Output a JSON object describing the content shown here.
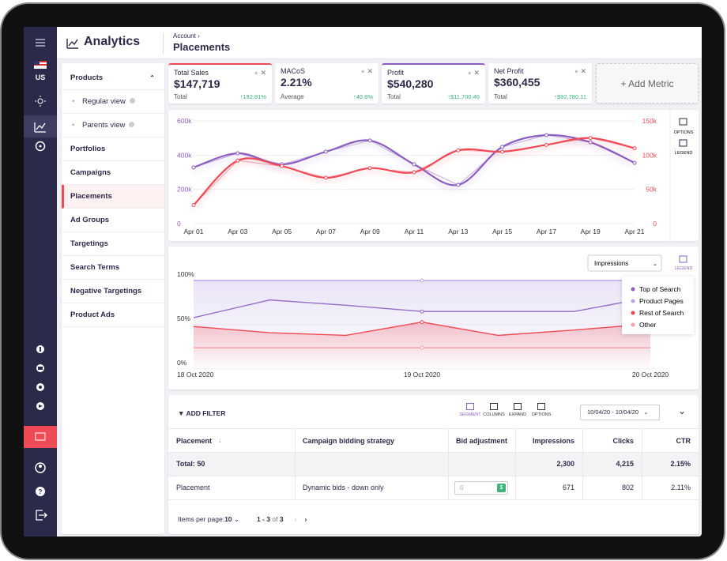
{
  "header": {
    "title": "Analytics",
    "breadcrumb": "Account",
    "page": "Placements"
  },
  "sidebar": {
    "country": "US"
  },
  "nav": {
    "group": "Products",
    "sub": [
      "Regular view",
      "Parents view"
    ],
    "items": [
      "Portfolios",
      "Campaigns",
      "Placements",
      "Ad Groups",
      "Targetings",
      "Search Terms",
      "Negative Targetings",
      "Product Ads"
    ]
  },
  "metrics": [
    {
      "title": "Total Sales",
      "value": "$147,719",
      "basis": "Total",
      "change": "↑192.81%"
    },
    {
      "title": "MACoS",
      "value": "2.21%",
      "basis": "Average",
      "change": "↑40.8%"
    },
    {
      "title": "Profit",
      "value": "$540,280",
      "basis": "Total",
      "change": "↑$11,700.46"
    },
    {
      "title": "Net Profit",
      "value": "$360,455",
      "basis": "Total",
      "change": "↑$92,780.11"
    }
  ],
  "add_metric": "Add Metric",
  "chart_data": [
    {
      "type": "line",
      "categories": [
        "Apr 01",
        "Apr 03",
        "Apr 05",
        "Apr 07",
        "Apr 09",
        "Apr 11",
        "Apr 13",
        "Apr 15",
        "Apr 17",
        "Apr 19",
        "Apr 21"
      ],
      "series": [
        {
          "color": "#8b5fbf",
          "values": [
            328000,
            411000,
            346000,
            420000,
            485000,
            346000,
            226000,
            448000,
            517000,
            475000,
            355000
          ]
        },
        {
          "color": "#ef4b57",
          "axis": "y2",
          "values": [
            27000,
            92000,
            84000,
            67000,
            81000,
            75000,
            107000,
            105000,
            115000,
            125000,
            110000
          ]
        }
      ],
      "ylim": [
        0,
        600000
      ],
      "yticks": [
        0,
        {
          "value": 200000,
          "label": "200k"
        },
        {
          "value": 400000,
          "label": "400k"
        },
        {
          "value": 600000,
          "label": "600k"
        }
      ],
      "y2lim": [
        0,
        150000
      ],
      "y2ticks": [
        0,
        {
          "value": 50000,
          "label": "50k"
        },
        {
          "value": 100000,
          "label": "100k"
        },
        {
          "value": 150000,
          "label": "150k"
        }
      ],
      "tools": [
        "OPTIONS",
        "LEGEND"
      ]
    },
    {
      "type": "line",
      "categories": [
        "18 Oct 2020",
        null,
        null,
        "19 Oct 2020",
        null,
        null,
        "20 Oct 2020"
      ],
      "series": [
        {
          "name": "Top of Search",
          "color": "#8b5fbf",
          "values": [
            58,
            78,
            72,
            65,
            65,
            65,
            81
          ]
        },
        {
          "name": "Product Pages",
          "color": "#b9a3e3",
          "values": [
            100,
            100,
            100,
            100,
            100,
            100,
            100
          ]
        },
        {
          "name": "Rest of Search",
          "color": "#ef4b57",
          "values": [
            48,
            41,
            38,
            53,
            38,
            44,
            51
          ]
        },
        {
          "name": "Other",
          "color": "#f7a1a8",
          "values": [
            24,
            24,
            24,
            24,
            24,
            24,
            24
          ]
        }
      ],
      "ylim": [
        0,
        100
      ],
      "yticks": [
        {
          "value": 0,
          "label": "0%"
        },
        {
          "value": 50,
          "label": "50%"
        },
        {
          "value": 100,
          "label": "100%"
        }
      ],
      "metric": "Impressions",
      "tool": "LEGEND",
      "legend": "right"
    }
  ],
  "table": {
    "filter": "ADD FILTER",
    "tools": [
      "SEGMENT",
      "COLUMNS",
      "EXPAND",
      "OPTIONS"
    ],
    "dates": "10/04/20 - 10/04/20",
    "columns": [
      "Placement",
      "Campaign bidding strategy",
      "Bid adjustment",
      "Impressions",
      "Clicks",
      "CTR"
    ],
    "total": {
      "label": "Total: 50",
      "impressions": "2,300",
      "clicks": "4,215",
      "ctr": "2.15%"
    },
    "rows": [
      {
        "placement": "Placement",
        "strategy": "Dynamic bids - down only",
        "bid": 0,
        "impressions": 671,
        "clicks": 802,
        "ctr": "2.11%"
      }
    ],
    "footer": {
      "per_page_label": "Items per page:",
      "per_page": 10,
      "range": "1 - 3",
      "of": "of",
      "pages": 3
    }
  }
}
